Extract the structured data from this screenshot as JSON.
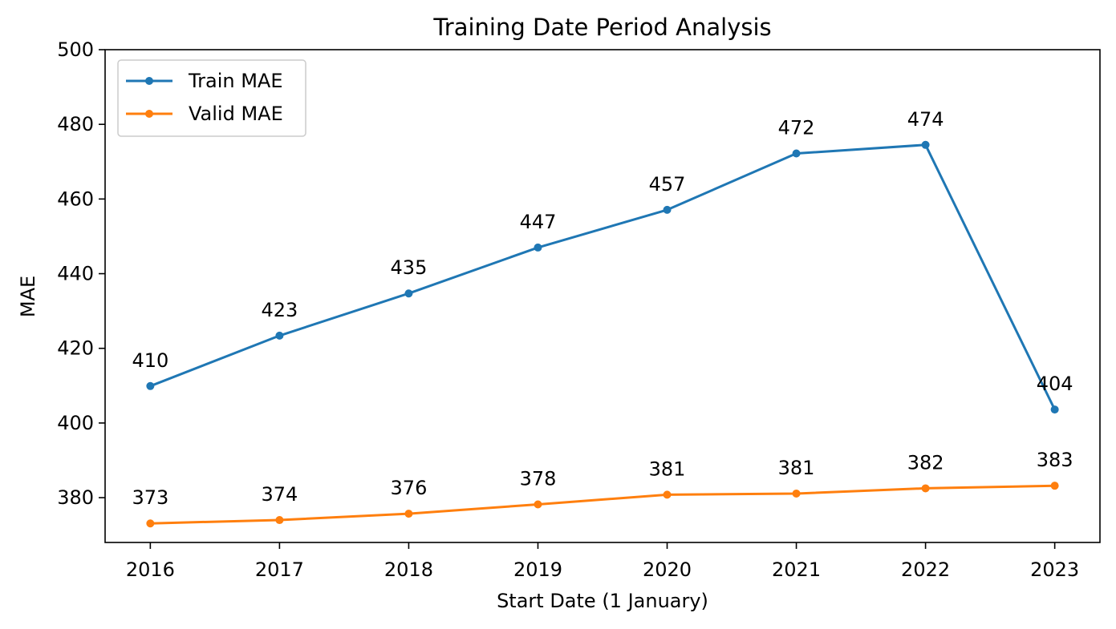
{
  "chart_data": {
    "type": "line",
    "title": "Training Date Period Analysis",
    "xlabel": "Start Date (1 January)",
    "ylabel": "MAE",
    "x": [
      2016,
      2017,
      2018,
      2019,
      2020,
      2021,
      2022,
      2023
    ],
    "x_tick_labels": [
      "2016",
      "2017",
      "2018",
      "2019",
      "2020",
      "2021",
      "2022",
      "2023"
    ],
    "ylim": [
      368,
      500
    ],
    "y_ticks": [
      380,
      400,
      420,
      440,
      460,
      480,
      500
    ],
    "y_tick_labels": [
      "380",
      "400",
      "420",
      "440",
      "460",
      "480",
      "500"
    ],
    "grid": false,
    "legend_position": "top-left",
    "series": [
      {
        "name": "Train MAE",
        "color": "#1f77b4",
        "values": [
          409.9,
          423.4,
          434.7,
          447.0,
          457.1,
          472.2,
          474.5,
          403.6
        ],
        "labels": [
          "410",
          "423",
          "435",
          "447",
          "457",
          "472",
          "474",
          "404"
        ]
      },
      {
        "name": "Valid MAE",
        "color": "#ff7f0e",
        "values": [
          373.1,
          374.0,
          375.7,
          378.2,
          380.8,
          381.1,
          382.5,
          383.2
        ],
        "labels": [
          "373",
          "374",
          "376",
          "378",
          "381",
          "381",
          "382",
          "383"
        ]
      }
    ]
  }
}
